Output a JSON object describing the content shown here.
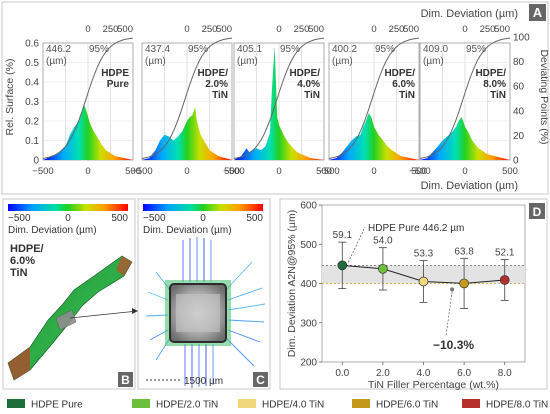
{
  "panel_labels": [
    "A",
    "B",
    "C",
    "D"
  ],
  "panel_a": {
    "top_axis_label": "Dim. Deviation (µm)",
    "bottom_axis_label": "Dim. Deviation (µm)",
    "left_axis_label": "Rel. Surface (%)",
    "right_axis_label": "Deviating Points (%)",
    "left_ticks": [
      "0",
      "0.1",
      "0.2",
      "0.3",
      "0.4",
      "0.5",
      "0.6"
    ],
    "right_ticks": [
      "0",
      "20",
      "40",
      "60",
      "80",
      "100"
    ],
    "top_ticks": [
      "0",
      "250",
      "500"
    ],
    "bottom_ticks": [
      "−500",
      "0",
      "500"
    ],
    "unit": "(µm)",
    "pct": "95%",
    "charts": [
      {
        "value": "446.2",
        "label_lines": [
          "HDPE",
          "Pure"
        ]
      },
      {
        "value": "437.4",
        "label_lines": [
          "HDPE/",
          "2.0%",
          "TiN"
        ]
      },
      {
        "value": "405.1",
        "label_lines": [
          "HDPE/",
          "4.0%",
          "TiN"
        ]
      },
      {
        "value": "400.2",
        "label_lines": [
          "HDPE/",
          "6.0%",
          "TiN"
        ]
      },
      {
        "value": "409.0",
        "label_lines": [
          "HDPE/",
          "8.0%",
          "TiN"
        ]
      }
    ]
  },
  "panel_b": {
    "colorbar_ticks": [
      "−500",
      "0",
      "500"
    ],
    "colorbar_label": "Dim. Deviation (µm)",
    "label_lines": [
      "HDPE/",
      "6.0%",
      "TiN"
    ]
  },
  "panel_c": {
    "colorbar_ticks": [
      "−500",
      "0",
      "500"
    ],
    "colorbar_label": "Dim. Deviation (µm)",
    "scale_bar": "1500 µm"
  },
  "chart_data": {
    "type": "line",
    "title": "",
    "xlabel": "TiN Filler Percentage (wt.%)",
    "ylabel": "Dim. Deviation A2N@95% (µm)",
    "x": [
      0,
      2,
      4,
      6,
      8
    ],
    "x_tick_labels": [
      "0.0",
      "2.0",
      "4.0",
      "6.0",
      "8.0"
    ],
    "y_tick_labels": [
      "200",
      "300",
      "400",
      "500",
      "600"
    ],
    "xlim": [
      -1,
      9
    ],
    "ylim": [
      200,
      600
    ],
    "series": [
      {
        "values": [
          446.2,
          437.4,
          405.1,
          400.2,
          409.0
        ],
        "errors": [
          59.1,
          54.0,
          53.3,
          63.8,
          52.1
        ],
        "error_labels": [
          "59.1",
          "54.0",
          "53.3",
          "63.8",
          "52.1"
        ]
      }
    ],
    "point_colors": [
      "#1e6e3c",
      "#6bbf3b",
      "#f0d77e",
      "#c49a1c",
      "#b5302a"
    ],
    "reference_band": [
      400,
      446.2
    ],
    "annotation_pure": "HDPE Pure 446.2 µm",
    "annotation_drop": "−10.3%",
    "grid": false
  },
  "legend": {
    "placement": "bottom",
    "items": [
      {
        "label": "HDPE Pure",
        "color": "#1e6e3c"
      },
      {
        "label": "HDPE/2.0 TiN",
        "color": "#6bbf3b"
      },
      {
        "label": "HDPE/4.0 TiN",
        "color": "#f0d77e"
      },
      {
        "label": "HDPE/6.0 TiN",
        "color": "#c49a1c"
      },
      {
        "label": "HDPE/8.0 TiN",
        "color": "#b5302a"
      }
    ]
  }
}
